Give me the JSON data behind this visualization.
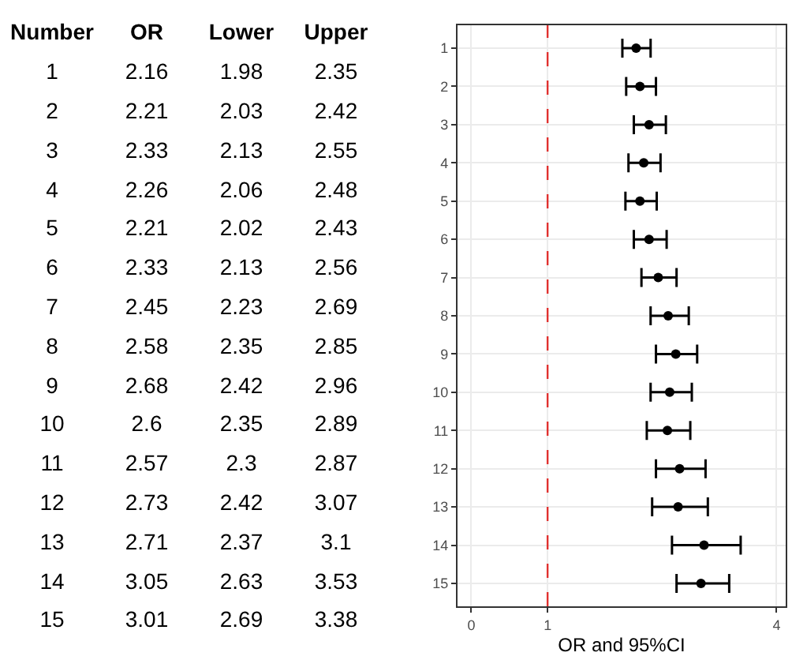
{
  "chart_data": [
    {
      "type": "heatmap",
      "ylabel": "Number",
      "data_labels": true,
      "categories": [
        "OR",
        "Lower",
        "Upper"
      ],
      "y_categories": [
        "1",
        "2",
        "3",
        "4",
        "5",
        "6",
        "7",
        "8",
        "9",
        "10",
        "11",
        "12",
        "13",
        "14",
        "15"
      ],
      "cells": [
        [
          2.16,
          1.98,
          2.35
        ],
        [
          2.21,
          2.03,
          2.42
        ],
        [
          2.33,
          2.13,
          2.55
        ],
        [
          2.26,
          2.06,
          2.48
        ],
        [
          2.21,
          2.02,
          2.43
        ],
        [
          2.33,
          2.13,
          2.56
        ],
        [
          2.45,
          2.23,
          2.69
        ],
        [
          2.58,
          2.35,
          2.85
        ],
        [
          2.68,
          2.42,
          2.96
        ],
        [
          2.6,
          2.35,
          2.89
        ],
        [
          2.57,
          2.3,
          2.87
        ],
        [
          2.73,
          2.42,
          3.07
        ],
        [
          2.71,
          2.37,
          3.1
        ],
        [
          3.05,
          2.63,
          3.53
        ],
        [
          3.01,
          2.69,
          3.38
        ]
      ]
    },
    {
      "type": "scatter",
      "xlabel": "OR and 95%CI",
      "orientation": "horizontal",
      "categories": [
        "1",
        "2",
        "3",
        "4",
        "5",
        "6",
        "7",
        "8",
        "9",
        "10",
        "11",
        "12",
        "13",
        "14",
        "15"
      ],
      "series": [
        {
          "color": "#000000",
          "values": [
            2.16,
            2.21,
            2.33,
            2.26,
            2.21,
            2.33,
            2.45,
            2.58,
            2.68,
            2.6,
            2.57,
            2.73,
            2.71,
            3.05,
            3.01
          ],
          "errors": [
            [
              1.98,
              2.35
            ],
            [
              2.03,
              2.42
            ],
            [
              2.13,
              2.55
            ],
            [
              2.06,
              2.48
            ],
            [
              2.02,
              2.43
            ],
            [
              2.13,
              2.56
            ],
            [
              2.23,
              2.69
            ],
            [
              2.35,
              2.85
            ],
            [
              2.42,
              2.96
            ],
            [
              2.35,
              2.89
            ],
            [
              2.3,
              2.87
            ],
            [
              2.42,
              3.07
            ],
            [
              2.37,
              3.1
            ],
            [
              2.63,
              3.53
            ],
            [
              2.69,
              3.38
            ]
          ]
        }
      ],
      "xlim": [
        -0.18,
        4.12
      ],
      "xticks": [
        0,
        1,
        4
      ],
      "ref_lines": [
        {
          "axis": "x",
          "value": 1,
          "color": "#e0312f",
          "line_style": "dashed"
        }
      ],
      "grid": true,
      "marker": "circle"
    }
  ]
}
